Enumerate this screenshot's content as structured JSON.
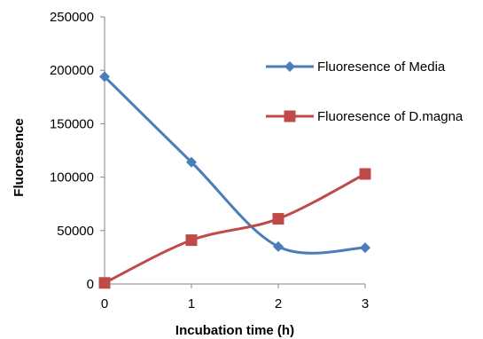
{
  "chart_data": {
    "type": "line",
    "smooth": true,
    "title": "",
    "xlabel": "Incubation time (h)",
    "ylabel": "Fluoresence",
    "x": [
      0,
      1,
      2,
      3
    ],
    "xlim": [
      0,
      3
    ],
    "ylim": [
      0,
      250000
    ],
    "yticks": [
      0,
      50000,
      100000,
      150000,
      200000,
      250000
    ],
    "grid": false,
    "legend_position": "right",
    "series": [
      {
        "name": "Fluoresence of Media",
        "values": [
          194000,
          114000,
          35000,
          34000
        ],
        "color": "#4a7ebb",
        "marker": "diamond"
      },
      {
        "name": "Fluoresence of D.magna",
        "values": [
          1000,
          41000,
          61000,
          103000
        ],
        "color": "#be4b48",
        "marker": "square"
      }
    ]
  }
}
